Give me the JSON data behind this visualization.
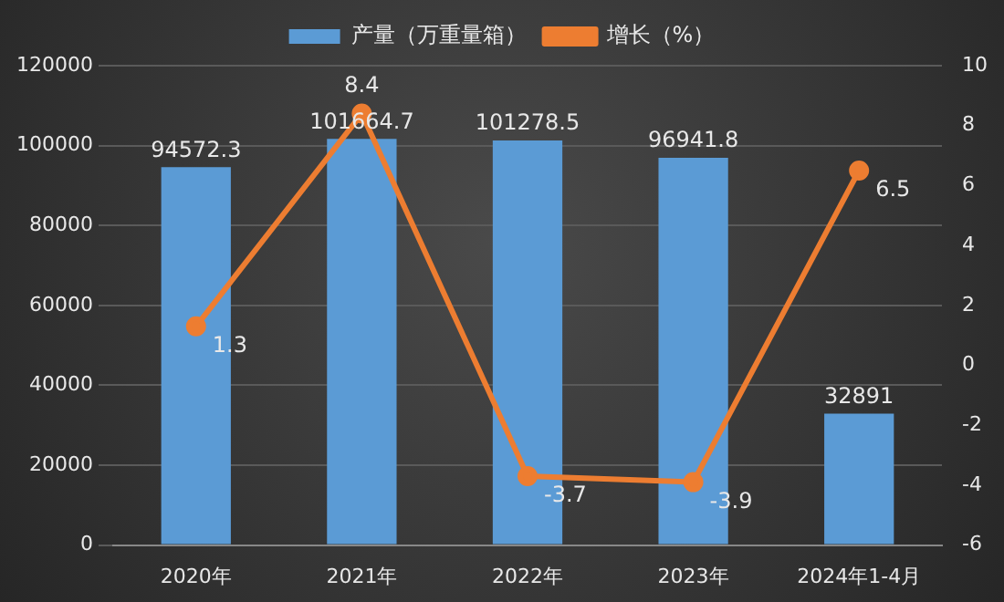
{
  "chart_data": {
    "type": "bar",
    "categories": [
      "2020年",
      "2021年",
      "2022年",
      "2023年",
      "2024年1-4月"
    ],
    "series": [
      {
        "name": "产量（万重量箱）",
        "color": "#5b9bd5",
        "values": [
          94572.3,
          101664.7,
          101278.5,
          96941.8,
          32891
        ]
      },
      {
        "name": "增长（%）",
        "type": "line",
        "axis": "y2",
        "color": "#ed7d31",
        "values": [
          1.3,
          8.4,
          -3.7,
          -3.9,
          6.5
        ]
      }
    ],
    "ylim": [
      0,
      120000
    ],
    "yticks": [
      0,
      20000,
      40000,
      60000,
      80000,
      100000,
      120000
    ],
    "y2lim": [
      -6,
      10
    ],
    "y2ticks": [
      -6,
      -4,
      -2,
      0,
      2,
      4,
      6,
      8,
      10
    ],
    "grid": "y",
    "legend": "top",
    "data_labels": true,
    "marker": "circle"
  }
}
